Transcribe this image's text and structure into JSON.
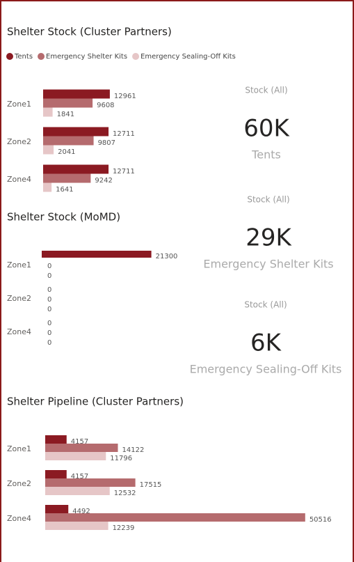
{
  "chart_data": [
    {
      "type": "bar",
      "orientation": "horizontal",
      "title": "Shelter Stock (Cluster Partners)",
      "legend": "top-left",
      "categories": [
        "Zone1",
        "Zone2",
        "Zone4"
      ],
      "series": [
        {
          "name": "Tents",
          "color": "#8b1a22",
          "values": [
            12961,
            12711,
            12711
          ]
        },
        {
          "name": "Emergency Shelter Kits",
          "color": "#b56b6e",
          "values": [
            9608,
            9807,
            9242
          ]
        },
        {
          "name": "Emergency Sealing-Off Kits",
          "color": "#e6c6c7",
          "values": [
            1841,
            2041,
            1641
          ]
        }
      ]
    },
    {
      "type": "bar",
      "orientation": "horizontal",
      "title": "Shelter Stock (MoMD)",
      "categories": [
        "Zone1",
        "Zone2",
        "Zone4"
      ],
      "series": [
        {
          "color": "#8b1a22",
          "values": [
            21300,
            0,
            0
          ]
        },
        {
          "color": "#b56b6e",
          "values": [
            0,
            0,
            0
          ]
        },
        {
          "color": "#e6c6c7",
          "values": [
            0,
            0,
            0
          ]
        }
      ]
    },
    {
      "type": "bar",
      "orientation": "horizontal",
      "title": "Shelter Pipeline (Cluster Partners)",
      "categories": [
        "Zone1",
        "Zone2",
        "Zone4"
      ],
      "series": [
        {
          "color": "#8b1a22",
          "values": [
            4157,
            4157,
            4492
          ]
        },
        {
          "color": "#b56b6e",
          "values": [
            14122,
            17515,
            50516
          ]
        },
        {
          "color": "#e6c6c7",
          "values": [
            11796,
            12532,
            12239
          ]
        }
      ]
    }
  ],
  "cards": [
    {
      "title": "Stock (All)",
      "value": "60K",
      "label": "Tents"
    },
    {
      "title": "Stock (All)",
      "value": "29K",
      "label": "Emergency Shelter Kits"
    },
    {
      "title": "Stock (All)",
      "value": "6K",
      "label": "Emergency Sealing-Off Kits"
    }
  ]
}
